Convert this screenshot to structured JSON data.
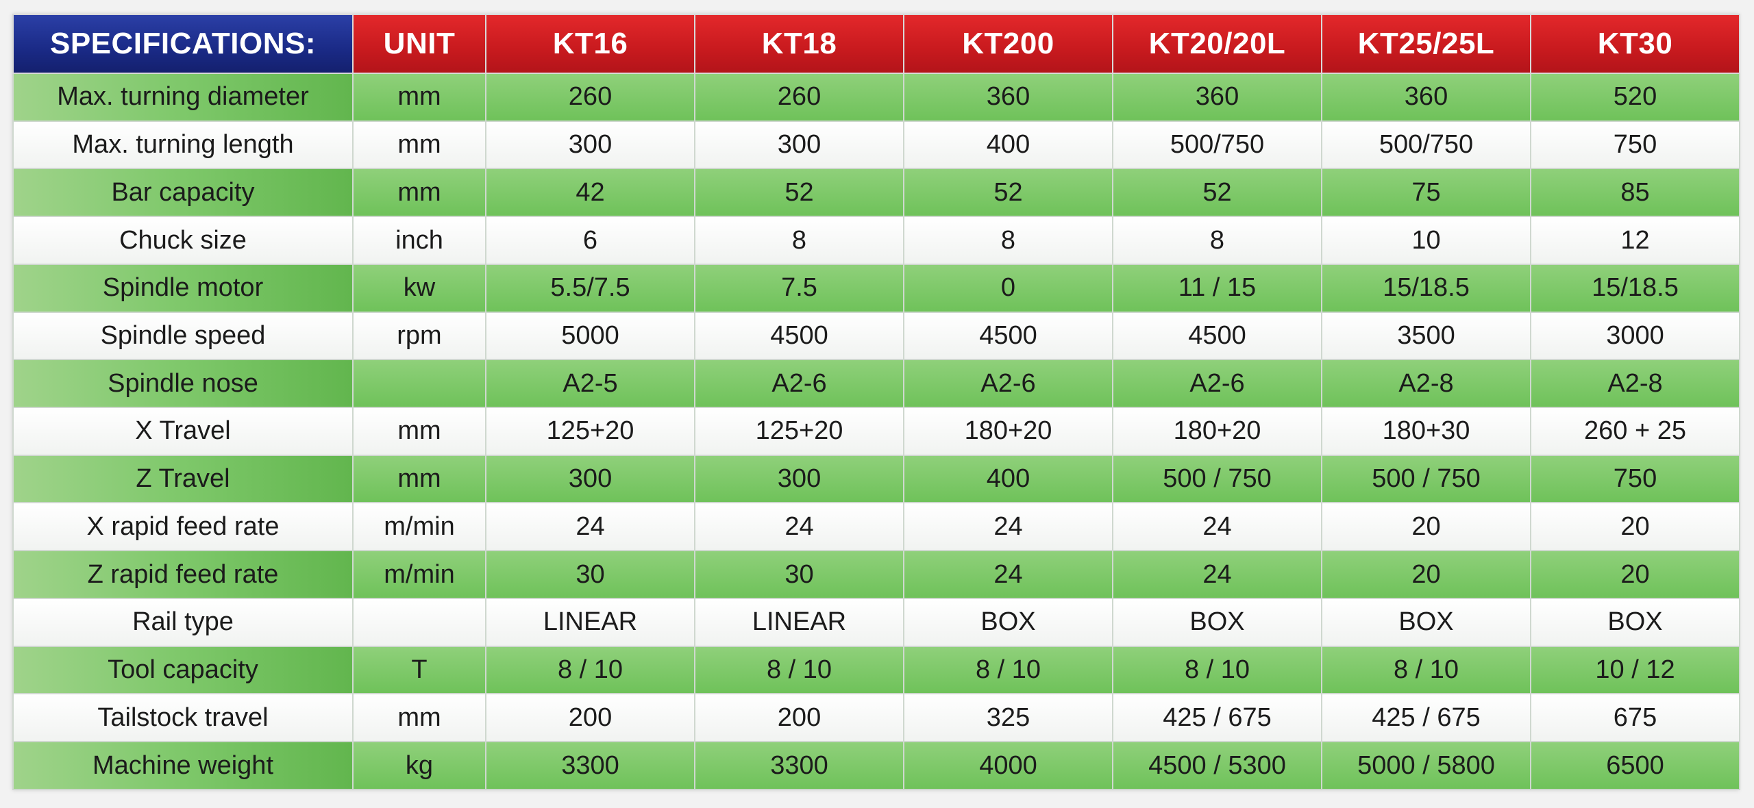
{
  "header": {
    "spec": "SPECIFICATIONS:",
    "unit": "UNIT",
    "models": [
      "KT16",
      "KT18",
      "KT200",
      "KT20/20L",
      "KT25/25L",
      "KT30"
    ]
  },
  "rows": [
    {
      "label": "Max. turning diameter",
      "unit": "mm",
      "values": [
        "260",
        "260",
        "360",
        "360",
        "360",
        "520"
      ]
    },
    {
      "label": "Max. turning length",
      "unit": "mm",
      "values": [
        "300",
        "300",
        "400",
        "500/750",
        "500/750",
        "750"
      ]
    },
    {
      "label": "Bar capacity",
      "unit": "mm",
      "values": [
        "42",
        "52",
        "52",
        "52",
        "75",
        "85"
      ]
    },
    {
      "label": "Chuck size",
      "unit": "inch",
      "values": [
        "6",
        "8",
        "8",
        "8",
        "10",
        "12"
      ]
    },
    {
      "label": "Spindle motor",
      "unit": "kw",
      "values": [
        "5.5/7.5",
        "7.5",
        "0",
        "11 / 15",
        "15/18.5",
        "15/18.5"
      ]
    },
    {
      "label": "Spindle speed",
      "unit": "rpm",
      "values": [
        "5000",
        "4500",
        "4500",
        "4500",
        "3500",
        "3000"
      ]
    },
    {
      "label": "Spindle nose",
      "unit": "",
      "values": [
        "A2-5",
        "A2-6",
        "A2-6",
        "A2-6",
        "A2-8",
        "A2-8"
      ]
    },
    {
      "label": "X Travel",
      "unit": "mm",
      "values": [
        "125+20",
        "125+20",
        "180+20",
        "180+20",
        "180+30",
        "260 + 25"
      ]
    },
    {
      "label": "Z Travel",
      "unit": "mm",
      "values": [
        "300",
        "300",
        "400",
        "500 / 750",
        "500 / 750",
        "750"
      ]
    },
    {
      "label": "X rapid feed rate",
      "unit": "m/min",
      "values": [
        "24",
        "24",
        "24",
        "24",
        "20",
        "20"
      ]
    },
    {
      "label": "Z rapid feed rate",
      "unit": "m/min",
      "values": [
        "30",
        "30",
        "24",
        "24",
        "20",
        "20"
      ]
    },
    {
      "label": "Rail type",
      "unit": "",
      "values": [
        "LINEAR",
        "LINEAR",
        "BOX",
        "BOX",
        "BOX",
        "BOX"
      ]
    },
    {
      "label": "Tool capacity",
      "unit": "T",
      "values": [
        "8 / 10",
        "8 / 10",
        "8 / 10",
        "8 / 10",
        "8 / 10",
        "10 / 12"
      ]
    },
    {
      "label": "Tailstock travel",
      "unit": "mm",
      "values": [
        "200",
        "200",
        "325",
        "425 / 675",
        "425 / 675",
        "675"
      ]
    },
    {
      "label": "Machine weight",
      "unit": "kg",
      "values": [
        "3300",
        "3300",
        "4000",
        "4500 / 5300",
        "5000 / 5800",
        "6500"
      ]
    }
  ],
  "colors": {
    "header_blue": "#1a2a86",
    "header_red": "#c81a1e",
    "row_green": "#7ec86a",
    "row_white": "#ffffff"
  }
}
